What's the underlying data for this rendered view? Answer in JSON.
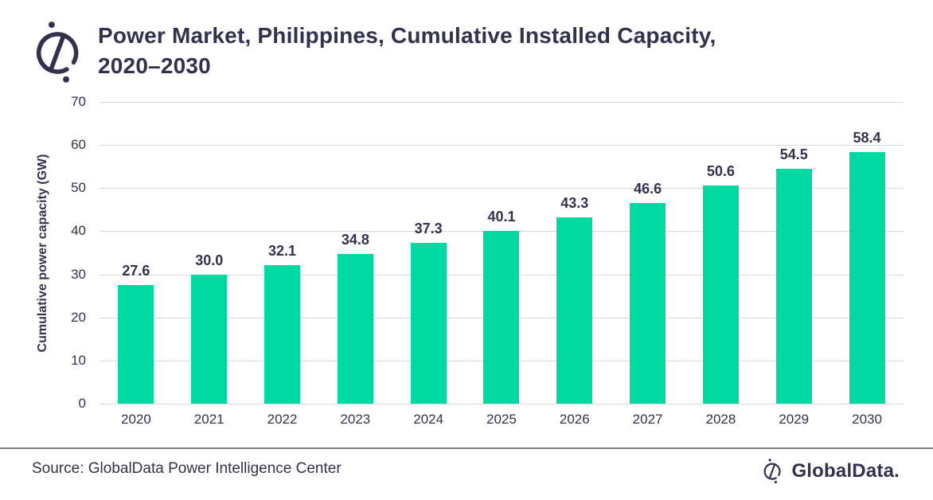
{
  "header": {
    "title_line1": "Power Market, Philippines, Cumulative Installed Capacity,",
    "title_line2": "2020–2030"
  },
  "chart_data": {
    "type": "bar",
    "title": "Power Market, Philippines, Cumulative Installed Capacity, 2020–2030",
    "categories": [
      "2020",
      "2021",
      "2022",
      "2023",
      "2024",
      "2025",
      "2026",
      "2027",
      "2028",
      "2029",
      "2030"
    ],
    "values": [
      27.6,
      30.0,
      32.1,
      34.8,
      37.3,
      40.1,
      43.3,
      46.6,
      50.6,
      54.5,
      58.4
    ],
    "value_labels": [
      "27.6",
      "30.0",
      "32.1",
      "34.8",
      "37.3",
      "40.1",
      "43.3",
      "46.6",
      "50.6",
      "54.5",
      "58.4"
    ],
    "xlabel": "",
    "ylabel": "Cumulative power capacity (GW)",
    "ylim": [
      0,
      70
    ],
    "yticks": [
      0,
      10,
      20,
      30,
      40,
      50,
      60,
      70
    ],
    "grid": true,
    "legend_position": "none",
    "bar_color": "#00d8a1",
    "text_color": "#32324d",
    "gridline_color": "#d9d9d9"
  },
  "footer": {
    "source": "Source: GlobalData Power Intelligence Center",
    "brand": "GlobalData."
  }
}
